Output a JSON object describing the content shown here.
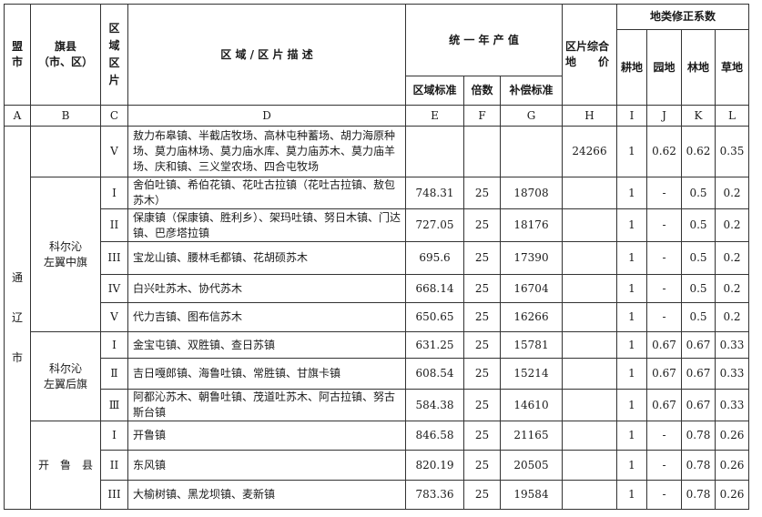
{
  "header": {
    "league_city": "盟\n市",
    "county": "旗县\n（市、区）",
    "zone": "区\n域\n区\n片",
    "description": "区 域 / 区 片 描 述",
    "annual_output": "统 一 年 产 值",
    "regional_standard": "区域标准",
    "multiple": "倍数",
    "compensation_standard": "补偿标准",
    "composite_price": "区片综合\n地　　价",
    "land_type_coefficients": "地类修正系数",
    "cultivated": "耕地",
    "garden": "园地",
    "forest": "林地",
    "grassland": "草地"
  },
  "letters": [
    "A",
    "B",
    "C",
    "D",
    "E",
    "F",
    "G",
    "H",
    "I",
    "J",
    "K",
    "L"
  ],
  "league_city_value": "通\n\n辽\n\n市",
  "groups": [
    {
      "county": "",
      "rows": [
        {
          "zone": "V",
          "desc": "敖力布皋镇、半截店牧场、高林屯种蓄场、胡力海原种场、莫力庙林场、莫力庙水库、莫力庙苏木、莫力庙羊场、庆和镇、三义堂农场、四合屯牧场",
          "e": "",
          "f": "",
          "g": "",
          "h": "24266",
          "i": "1",
          "j": "0.62",
          "k": "0.62",
          "l": "0.35"
        }
      ]
    },
    {
      "county": "科尔沁\n左翼中旗",
      "rows": [
        {
          "zone": "I",
          "desc": "舍伯吐镇、希伯花镇、花吐古拉镇（花吐古拉镇、敖包苏木）",
          "e": "748.31",
          "f": "25",
          "g": "18708",
          "h": "",
          "i": "1",
          "j": "-",
          "k": "0.5",
          "l": "0.2"
        },
        {
          "zone": "II",
          "desc": "保康镇（保康镇、胜利乡）、架玛吐镇、努日木镇、门达镇、巴彦塔拉镇",
          "e": "727.05",
          "f": "25",
          "g": "18176",
          "h": "",
          "i": "1",
          "j": "-",
          "k": "0.5",
          "l": "0.2"
        },
        {
          "zone": "III",
          "desc": "宝龙山镇、腰林毛都镇、花胡硕苏木",
          "e": "695.6",
          "f": "25",
          "g": "17390",
          "h": "",
          "i": "1",
          "j": "-",
          "k": "0.5",
          "l": "0.2"
        },
        {
          "zone": "IV",
          "desc": "白兴吐苏木、协代苏木",
          "e": "668.14",
          "f": "25",
          "g": "16704",
          "h": "",
          "i": "1",
          "j": "-",
          "k": "0.5",
          "l": "0.2"
        },
        {
          "zone": "V",
          "desc": "代力吉镇、图布信苏木",
          "e": "650.65",
          "f": "25",
          "g": "16266",
          "h": "",
          "i": "1",
          "j": "-",
          "k": "0.5",
          "l": "0.2"
        }
      ]
    },
    {
      "county": "科尔沁\n左翼后旗",
      "rows": [
        {
          "zone": "I",
          "desc": "金宝屯镇、双胜镇、查日苏镇",
          "e": "631.25",
          "f": "25",
          "g": "15781",
          "h": "",
          "i": "1",
          "j": "0.67",
          "k": "0.67",
          "l": "0.33"
        },
        {
          "zone": "Ⅱ",
          "desc": "吉日嘎郎镇、海鲁吐镇、常胜镇、甘旗卡镇",
          "e": "608.54",
          "f": "25",
          "g": "15214",
          "h": "",
          "i": "1",
          "j": "0.67",
          "k": "0.67",
          "l": "0.33"
        },
        {
          "zone": "Ⅲ",
          "desc": "阿都沁苏木、朝鲁吐镇、茂道吐苏木、阿古拉镇、努古斯台镇",
          "e": "584.38",
          "f": "25",
          "g": "14610",
          "h": "",
          "i": "1",
          "j": "0.67",
          "k": "0.67",
          "l": "0.33"
        }
      ]
    },
    {
      "county": "开　鲁　县",
      "rows": [
        {
          "zone": "I",
          "desc": "开鲁镇",
          "e": "846.58",
          "f": "25",
          "g": "21165",
          "h": "",
          "i": "1",
          "j": "-",
          "k": "0.78",
          "l": "0.26"
        },
        {
          "zone": "II",
          "desc": "东风镇",
          "e": "820.19",
          "f": "25",
          "g": "20505",
          "h": "",
          "i": "1",
          "j": "-",
          "k": "0.78",
          "l": "0.26"
        },
        {
          "zone": "III",
          "desc": "大榆树镇、黑龙坝镇、麦新镇",
          "e": "783.36",
          "f": "25",
          "g": "19584",
          "h": "",
          "i": "1",
          "j": "-",
          "k": "0.78",
          "l": "0.26"
        }
      ]
    }
  ]
}
